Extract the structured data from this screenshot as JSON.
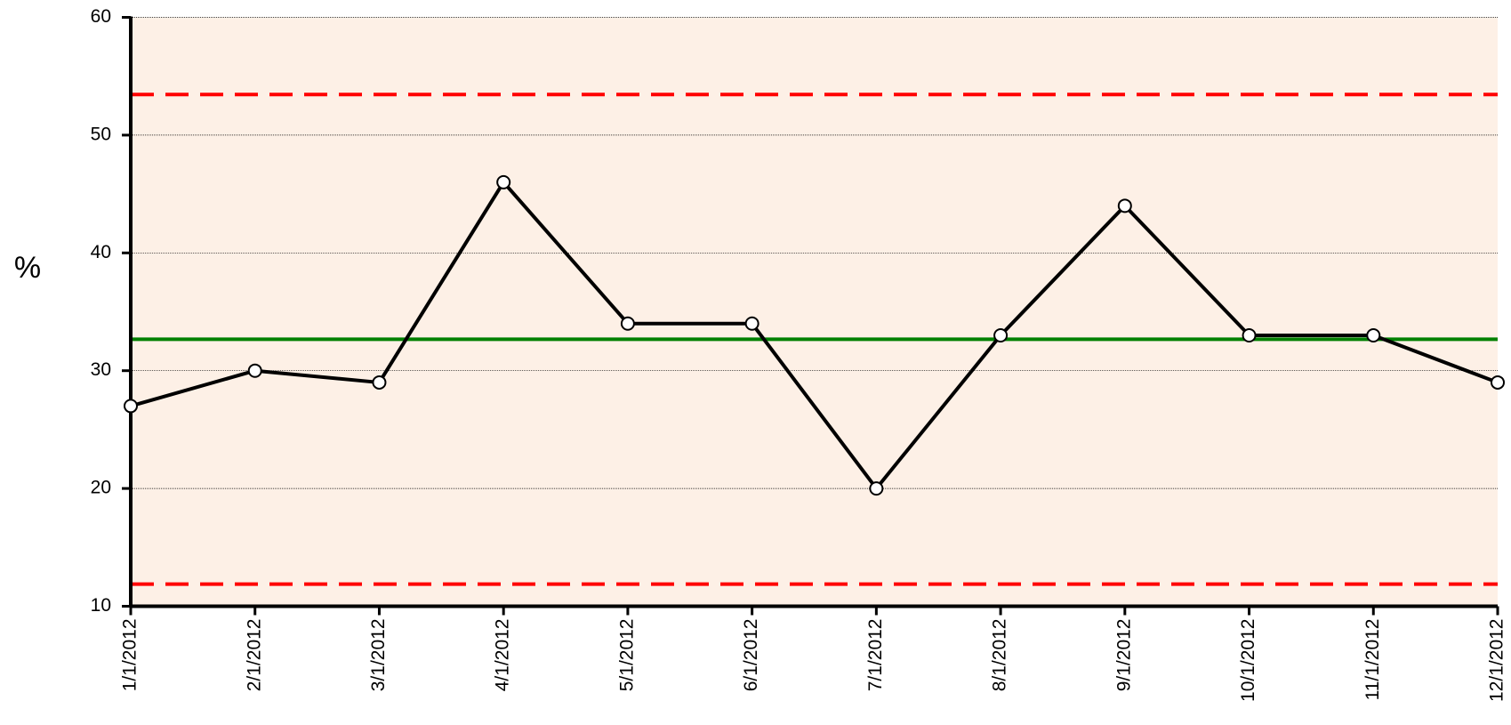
{
  "chart_data": {
    "type": "line",
    "y_label": "%",
    "categories": [
      "1/1/2012",
      "2/1/2012",
      "3/1/2012",
      "4/1/2012",
      "5/1/2012",
      "6/1/2012",
      "7/1/2012",
      "8/1/2012",
      "9/1/2012",
      "10/1/2012",
      "11/1/2012",
      "12/1/2012"
    ],
    "series": [
      {
        "color": "#000000",
        "values": [
          27,
          30,
          29,
          46,
          34,
          34,
          20,
          33,
          44,
          33,
          33,
          29
        ]
      }
    ],
    "reference_lines": [
      {
        "value": 53.45,
        "color": "#ff0000",
        "style": "dashed"
      },
      {
        "value": 32.67,
        "color": "#008000",
        "style": "solid"
      },
      {
        "value": 11.88,
        "color": "#ff0000",
        "style": "dashed"
      }
    ],
    "ylim": [
      10,
      60
    ],
    "yticks": [
      10,
      20,
      30,
      40,
      50,
      60
    ],
    "grid": true,
    "background": "#fdf0e6"
  }
}
